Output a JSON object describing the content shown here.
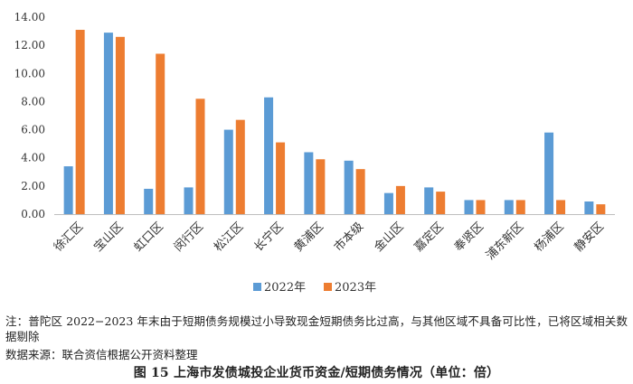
{
  "chart_data": {
    "type": "bar",
    "categories": [
      "徐汇区",
      "宝山区",
      "虹口区",
      "闵行区",
      "松江区",
      "长宁区",
      "黄浦区",
      "市本级",
      "金山区",
      "嘉定区",
      "奉贤区",
      "浦东新区",
      "杨浦区",
      "静安区"
    ],
    "series": [
      {
        "name": "2022年",
        "color": "#5b9bd5",
        "values": [
          3.4,
          12.9,
          1.8,
          1.9,
          6.0,
          8.3,
          4.4,
          3.8,
          1.5,
          1.9,
          1.0,
          1.0,
          5.8,
          0.9
        ]
      },
      {
        "name": "2023年",
        "color": "#ed7d31",
        "values": [
          13.1,
          12.6,
          11.4,
          8.2,
          6.7,
          5.1,
          3.9,
          3.2,
          2.0,
          1.6,
          1.0,
          1.0,
          1.0,
          0.7
        ]
      }
    ],
    "yticks": [
      "0.00",
      "2.00",
      "4.00",
      "6.00",
      "8.00",
      "10.00",
      "12.00",
      "14.00"
    ],
    "ylim": [
      0,
      14
    ],
    "xlabel": "",
    "ylabel": "",
    "grid": false,
    "legend_position": "bottom-center"
  },
  "note": "注：普陀区 2022−2023 年末由于短期债务规模过小导致现金短期债务比过高，与其他区域不具备可比性，已将区域相关数据剔除",
  "source": "数据来源：联合资信根据公开资料整理",
  "figure_title": "图 15 上海市发债城投企业货币资金/短期债务情况（单位：倍）"
}
